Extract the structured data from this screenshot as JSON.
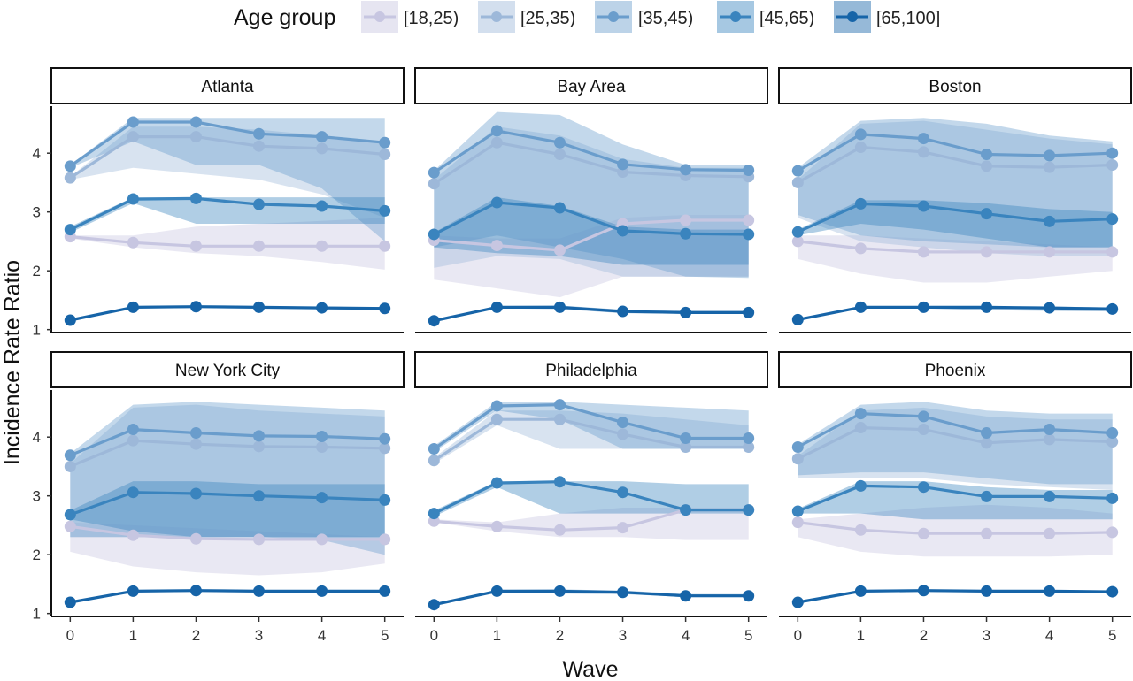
{
  "chart_data": {
    "type": "line",
    "legend": {
      "title": "Age group",
      "placement": "top",
      "entries": [
        "[18,25)",
        "[25,35)",
        "[35,45)",
        "[45,65)",
        "[65,100]"
      ]
    },
    "xlabel": "Wave",
    "ylabel": "Incidence Rate Ratio",
    "x": [
      0,
      1,
      2,
      3,
      4,
      5
    ],
    "x_ticks": [
      "0",
      "1",
      "2",
      "3",
      "4",
      "5"
    ],
    "y_ticks": [
      "1",
      "2",
      "3",
      "4"
    ],
    "ylim": [
      0.95,
      4.8
    ],
    "grid": false,
    "colors": {
      "[18,25)": "#c7c6e1",
      "[25,35)": "#9db8d9",
      "[35,45)": "#6a9dcc",
      "[45,65)": "#3a84be",
      "[65,100]": "#1664a8"
    },
    "panels": [
      {
        "title": "Atlanta",
        "series": [
          {
            "name": "[18,25)",
            "values": [
              2.58,
              2.48,
              2.42,
              2.42,
              2.42,
              2.42
            ],
            "lower": [
              2.55,
              2.4,
              2.3,
              2.25,
              2.15,
              2.02
            ],
            "upper": [
              2.6,
              2.6,
              2.75,
              2.8,
              2.85,
              2.9
            ]
          },
          {
            "name": "[25,35)",
            "values": [
              3.58,
              4.28,
              4.28,
              4.12,
              4.08,
              3.98
            ],
            "lower": [
              3.55,
              3.75,
              3.65,
              3.55,
              3.3,
              2.9
            ],
            "upper": [
              3.6,
              4.45,
              4.45,
              4.4,
              4.3,
              4.2
            ]
          },
          {
            "name": "[35,45)",
            "values": [
              3.78,
              4.53,
              4.53,
              4.33,
              4.28,
              4.18
            ],
            "lower": [
              3.75,
              4.2,
              3.8,
              3.8,
              3.4,
              2.5
            ],
            "upper": [
              3.8,
              4.6,
              4.6,
              4.6,
              4.6,
              4.6
            ]
          },
          {
            "name": "[45,65)",
            "values": [
              2.7,
              3.22,
              3.23,
              3.13,
              3.1,
              3.02
            ],
            "lower": [
              2.65,
              3.15,
              2.8,
              2.8,
              2.8,
              2.8
            ],
            "upper": [
              2.75,
              3.25,
              3.25,
              3.25,
              3.25,
              3.25
            ]
          },
          {
            "name": "[65,100]",
            "values": [
              1.16,
              1.38,
              1.39,
              1.38,
              1.37,
              1.36
            ],
            "lower": [
              1.15,
              1.36,
              1.37,
              1.36,
              1.35,
              1.33
            ],
            "upper": [
              1.17,
              1.4,
              1.41,
              1.4,
              1.39,
              1.38
            ]
          }
        ]
      },
      {
        "title": "Bay Area",
        "series": [
          {
            "name": "[18,25)",
            "values": [
              2.52,
              2.43,
              2.35,
              2.8,
              2.86,
              2.86
            ],
            "lower": [
              1.85,
              1.7,
              1.55,
              1.9,
              1.9,
              1.9
            ],
            "upper": [
              2.6,
              2.55,
              2.55,
              2.9,
              2.95,
              2.95
            ]
          },
          {
            "name": "[25,35)",
            "values": [
              3.48,
              4.18,
              3.98,
              3.68,
              3.62,
              3.6
            ],
            "lower": [
              2.05,
              2.25,
              2.2,
              1.9,
              1.9,
              1.9
            ],
            "upper": [
              3.55,
              4.45,
              4.3,
              3.9,
              3.75,
              3.75
            ]
          },
          {
            "name": "[35,45)",
            "values": [
              3.67,
              4.38,
              4.18,
              3.81,
              3.72,
              3.71
            ],
            "lower": [
              2.4,
              2.6,
              2.4,
              2.2,
              1.9,
              1.88
            ],
            "upper": [
              3.7,
              4.7,
              4.65,
              4.15,
              3.8,
              3.8
            ]
          },
          {
            "name": "[45,65)",
            "values": [
              2.62,
              3.16,
              3.07,
              2.68,
              2.63,
              2.62
            ],
            "lower": [
              2.4,
              2.3,
              2.25,
              2.1,
              2.1,
              2.1
            ],
            "upper": [
              2.65,
              3.25,
              3.1,
              2.75,
              2.7,
              2.7
            ]
          },
          {
            "name": "[65,100]",
            "values": [
              1.15,
              1.38,
              1.38,
              1.31,
              1.29,
              1.29
            ],
            "lower": [
              1.14,
              1.36,
              1.35,
              1.28,
              1.27,
              1.27
            ],
            "upper": [
              1.16,
              1.4,
              1.41,
              1.34,
              1.32,
              1.32
            ]
          }
        ]
      },
      {
        "title": "Boston",
        "series": [
          {
            "name": "[18,25)",
            "values": [
              2.5,
              2.38,
              2.32,
              2.32,
              2.32,
              2.32
            ],
            "lower": [
              2.2,
              1.95,
              1.8,
              1.8,
              1.9,
              2.0
            ],
            "upper": [
              2.6,
              2.6,
              2.55,
              2.5,
              2.45,
              2.4
            ]
          },
          {
            "name": "[25,35)",
            "values": [
              3.5,
              4.1,
              4.02,
              3.78,
              3.76,
              3.8
            ],
            "lower": [
              2.9,
              2.5,
              2.4,
              2.3,
              2.25,
              2.25
            ],
            "upper": [
              3.55,
              4.5,
              4.55,
              4.4,
              4.25,
              4.15
            ]
          },
          {
            "name": "[35,45)",
            "values": [
              3.7,
              4.32,
              4.25,
              3.98,
              3.96,
              4.0
            ],
            "lower": [
              2.95,
              2.6,
              2.5,
              2.45,
              2.4,
              2.4
            ],
            "upper": [
              3.75,
              4.55,
              4.6,
              4.5,
              4.3,
              4.2
            ]
          },
          {
            "name": "[45,65)",
            "values": [
              2.66,
              3.14,
              3.1,
              2.97,
              2.84,
              2.88
            ],
            "lower": [
              2.6,
              2.8,
              2.7,
              2.55,
              2.4,
              2.4
            ],
            "upper": [
              2.7,
              3.2,
              3.2,
              3.15,
              3.05,
              3.0
            ]
          },
          {
            "name": "[65,100]",
            "values": [
              1.17,
              1.38,
              1.38,
              1.38,
              1.37,
              1.35
            ],
            "lower": [
              1.16,
              1.36,
              1.36,
              1.33,
              1.32,
              1.31
            ],
            "upper": [
              1.18,
              1.4,
              1.4,
              1.4,
              1.39,
              1.38
            ]
          }
        ]
      },
      {
        "title": "New York City",
        "series": [
          {
            "name": "[18,25)",
            "values": [
              2.48,
              2.33,
              2.27,
              2.26,
              2.26,
              2.26
            ],
            "lower": [
              2.05,
              1.8,
              1.7,
              1.65,
              1.7,
              1.85
            ],
            "upper": [
              2.55,
              2.5,
              2.45,
              2.4,
              2.35,
              2.3
            ]
          },
          {
            "name": "[25,35)",
            "values": [
              3.5,
              3.94,
              3.88,
              3.84,
              3.83,
              3.81
            ],
            "lower": [
              2.3,
              2.3,
              2.3,
              2.3,
              2.3,
              2.3
            ],
            "upper": [
              3.55,
              4.5,
              4.55,
              4.45,
              4.4,
              4.35
            ]
          },
          {
            "name": "[35,45)",
            "values": [
              3.69,
              4.13,
              4.07,
              4.02,
              4.01,
              3.97
            ],
            "lower": [
              2.3,
              2.3,
              2.3,
              2.3,
              2.25,
              2.0
            ],
            "upper": [
              3.72,
              4.55,
              4.6,
              4.55,
              4.5,
              4.45
            ]
          },
          {
            "name": "[45,65)",
            "values": [
              2.68,
              3.06,
              3.04,
              3.0,
              2.97,
              2.93
            ],
            "lower": [
              2.6,
              2.4,
              2.3,
              2.3,
              2.3,
              2.3
            ],
            "upper": [
              2.75,
              3.25,
              3.25,
              3.2,
              3.2,
              3.2
            ]
          },
          {
            "name": "[65,100]",
            "values": [
              1.19,
              1.38,
              1.39,
              1.38,
              1.38,
              1.38
            ],
            "lower": [
              1.18,
              1.36,
              1.37,
              1.36,
              1.36,
              1.35
            ],
            "upper": [
              1.2,
              1.4,
              1.41,
              1.4,
              1.4,
              1.4
            ]
          }
        ]
      },
      {
        "title": "Philadelphia",
        "series": [
          {
            "name": "[18,25)",
            "values": [
              2.57,
              2.48,
              2.42,
              2.46,
              2.76,
              2.76
            ],
            "lower": [
              2.55,
              2.4,
              2.3,
              2.3,
              2.25,
              2.25
            ],
            "upper": [
              2.6,
              2.55,
              2.7,
              2.8,
              2.8,
              2.8
            ]
          },
          {
            "name": "[25,35)",
            "values": [
              3.6,
              4.3,
              4.3,
              4.05,
              3.83,
              3.83
            ],
            "lower": [
              3.55,
              4.2,
              3.8,
              3.8,
              3.8,
              3.8
            ],
            "upper": [
              3.65,
              4.45,
              4.45,
              4.4,
              4.3,
              4.2
            ]
          },
          {
            "name": "[35,45)",
            "values": [
              3.8,
              4.53,
              4.55,
              4.25,
              3.98,
              3.98
            ],
            "lower": [
              3.75,
              4.45,
              4.3,
              3.8,
              3.8,
              3.8
            ],
            "upper": [
              3.85,
              4.6,
              4.6,
              4.55,
              4.5,
              4.45
            ]
          },
          {
            "name": "[45,65)",
            "values": [
              2.7,
              3.22,
              3.24,
              3.06,
              2.76,
              2.76
            ],
            "lower": [
              2.65,
              3.15,
              2.7,
              2.7,
              2.7,
              2.7
            ],
            "upper": [
              2.75,
              3.25,
              3.25,
              3.25,
              3.2,
              3.2
            ]
          },
          {
            "name": "[65,100]",
            "values": [
              1.15,
              1.38,
              1.38,
              1.36,
              1.3,
              1.3
            ],
            "lower": [
              1.14,
              1.36,
              1.34,
              1.33,
              1.28,
              1.28
            ],
            "upper": [
              1.16,
              1.4,
              1.41,
              1.39,
              1.33,
              1.33
            ]
          }
        ]
      },
      {
        "title": "Phoenix",
        "series": [
          {
            "name": "[18,25)",
            "values": [
              2.55,
              2.42,
              2.36,
              2.36,
              2.36,
              2.38
            ],
            "lower": [
              2.3,
              2.05,
              1.97,
              1.97,
              1.97,
              2.0
            ],
            "upper": [
              2.6,
              2.7,
              2.8,
              2.85,
              2.8,
              2.7
            ]
          },
          {
            "name": "[25,35)",
            "values": [
              3.63,
              4.16,
              4.13,
              3.9,
              3.96,
              3.92
            ],
            "lower": [
              3.3,
              3.3,
              3.3,
              3.2,
              3.15,
              3.1
            ],
            "upper": [
              3.68,
              4.45,
              4.5,
              4.35,
              4.3,
              4.3
            ]
          },
          {
            "name": "[35,45)",
            "values": [
              3.83,
              4.4,
              4.35,
              4.07,
              4.13,
              4.07
            ],
            "lower": [
              3.35,
              3.4,
              3.4,
              3.3,
              3.2,
              3.2
            ],
            "upper": [
              3.87,
              4.55,
              4.6,
              4.45,
              4.4,
              4.4
            ]
          },
          {
            "name": "[45,65)",
            "values": [
              2.74,
              3.17,
              3.15,
              2.99,
              2.99,
              2.96
            ],
            "lower": [
              2.7,
              2.7,
              2.6,
              2.6,
              2.6,
              2.6
            ],
            "upper": [
              2.78,
              3.25,
              3.25,
              3.15,
              3.1,
              3.1
            ]
          },
          {
            "name": "[65,100]",
            "values": [
              1.19,
              1.38,
              1.39,
              1.38,
              1.38,
              1.37
            ],
            "lower": [
              1.18,
              1.36,
              1.37,
              1.36,
              1.36,
              1.35
            ],
            "upper": [
              1.2,
              1.4,
              1.41,
              1.4,
              1.4,
              1.39
            ]
          }
        ]
      }
    ]
  }
}
